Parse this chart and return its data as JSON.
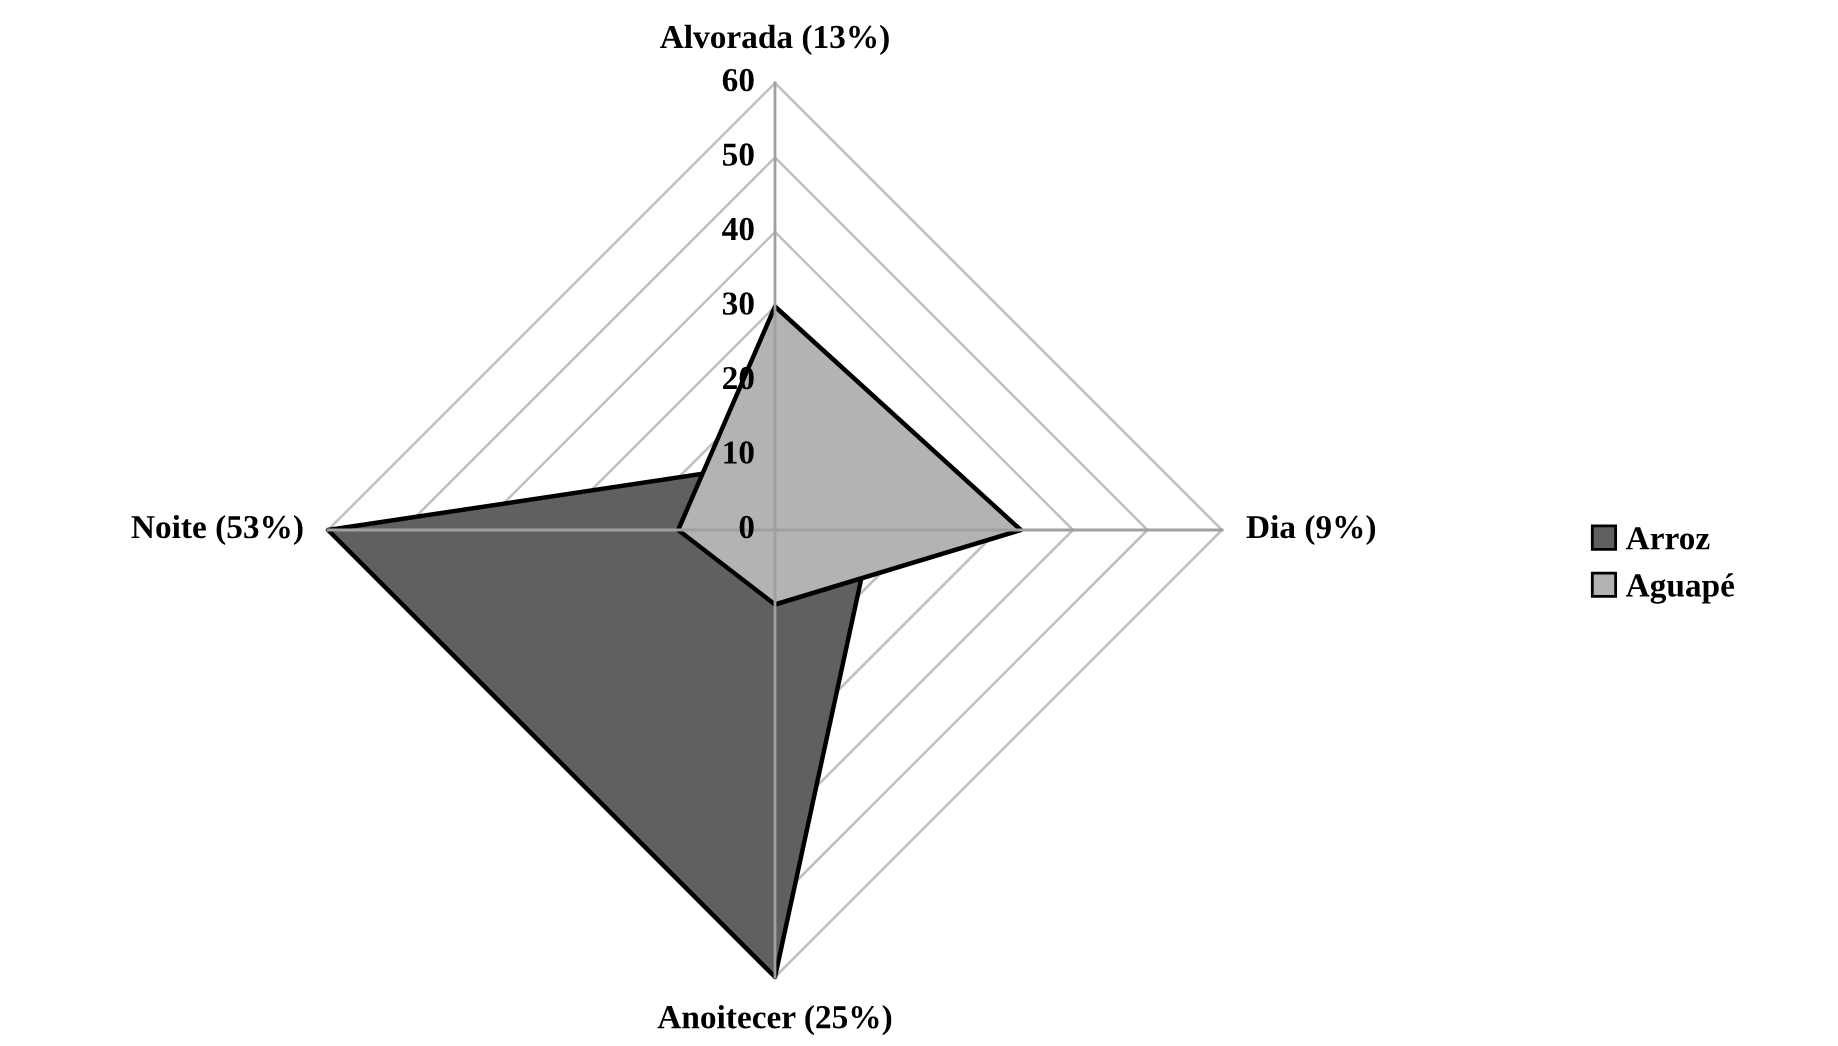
{
  "chart_data": {
    "type": "radar",
    "categories": [
      "Alvorada (13%)",
      "Dia (9%)",
      "Anoitecer (25%)",
      "Noite (53%)"
    ],
    "series": [
      {
        "name": "Arroz",
        "color": "#606060",
        "values": [
          9,
          13,
          60,
          60
        ]
      },
      {
        "name": "Aguapé",
        "color": "#b3b3b3",
        "values": [
          30,
          33,
          10,
          13
        ]
      }
    ],
    "ylim": [
      0,
      60
    ],
    "yticks": [
      0,
      10,
      20,
      30,
      40,
      50,
      60
    ],
    "grid": true,
    "legend": "right"
  }
}
